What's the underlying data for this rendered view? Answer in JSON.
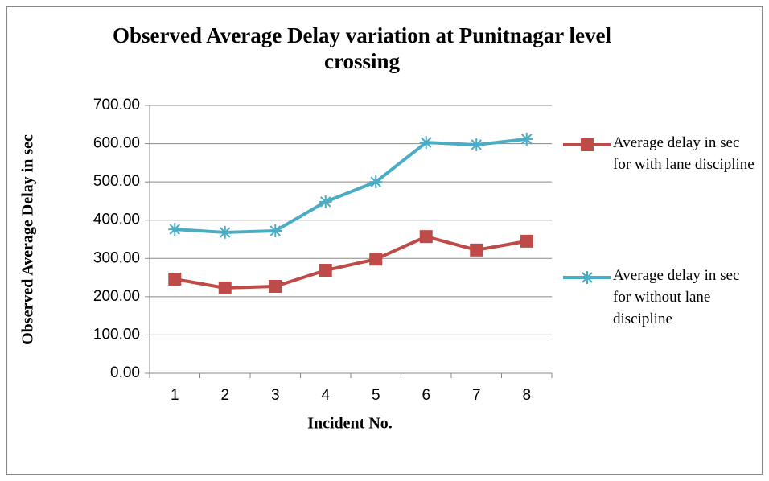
{
  "chart_data": {
    "type": "line",
    "title": "Observed Average Delay variation at Punitnagar level crossing",
    "x_label": "Incident No.",
    "y_label": "Observed Average Delay in sec",
    "categories": [
      "1",
      "2",
      "3",
      "4",
      "5",
      "6",
      "7",
      "8"
    ],
    "series": [
      {
        "name": "Average delay in sec for with lane discipline",
        "color": "#be4b48",
        "marker": "square",
        "values": [
          246,
          223,
          227,
          269,
          298,
          357,
          322,
          345
        ]
      },
      {
        "name": "Average delay in sec for without lane discipline",
        "color": "#4bacc6",
        "marker": "asterisk",
        "values": [
          376,
          368,
          372,
          448,
          500,
          603,
          597,
          612
        ]
      }
    ],
    "ylim": [
      0,
      700
    ],
    "yticks": [
      {
        "value": 0,
        "label": "0.00"
      },
      {
        "value": 100,
        "label": "100.00"
      },
      {
        "value": 200,
        "label": "200.00"
      },
      {
        "value": 300,
        "label": "300.00"
      },
      {
        "value": 400,
        "label": "400.00"
      },
      {
        "value": 500,
        "label": "500.00"
      },
      {
        "value": 600,
        "label": "600.00"
      },
      {
        "value": 700,
        "label": "700.00"
      }
    ],
    "grid": true,
    "legend": "right"
  }
}
